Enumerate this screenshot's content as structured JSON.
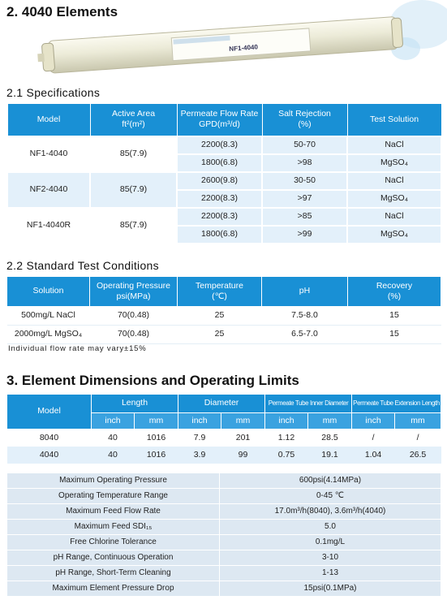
{
  "heading": "2. 4040 Elements",
  "element_label": "NF1-4040",
  "specifications": {
    "title": "2.1 Specifications",
    "header": [
      "Model",
      "Active Area\nft²(m²)",
      "Permeate Flow Rate\nGPD(m³/d)",
      "Salt Rejection\n(%)",
      "Test Solution"
    ],
    "groups": [
      {
        "model": "NF1-4040",
        "area": "85(7.9)",
        "rows": [
          [
            "2200(8.3)",
            "50-70",
            "NaCl"
          ],
          [
            "1800(6.8)",
            ">98",
            "MgSO₄"
          ]
        ]
      },
      {
        "model": "NF2-4040",
        "area": "85(7.9)",
        "rows": [
          [
            "2600(9.8)",
            "30-50",
            "NaCl"
          ],
          [
            "2200(8.3)",
            ">97",
            "MgSO₄"
          ]
        ]
      },
      {
        "model": "NF1-4040R",
        "area": "85(7.9)",
        "rows": [
          [
            "2200(8.3)",
            ">85",
            "NaCl"
          ],
          [
            "1800(6.8)",
            ">99",
            "MgSO₄"
          ]
        ]
      }
    ]
  },
  "test_conditions": {
    "title": "2.2 Standard Test Conditions",
    "header": [
      "Solution",
      "Operating Pressure\npsi(MPa)",
      "Temperature\n(℃)",
      "pH",
      "Recovery\n(%)"
    ],
    "rows": [
      [
        "500mg/L NaCl",
        "70(0.48)",
        "25",
        "7.5-8.0",
        "15"
      ],
      [
        "2000mg/L MgSO₄",
        "70(0.48)",
        "25",
        "6.5-7.0",
        "15"
      ]
    ],
    "note": "Individual flow rate may vary±15%"
  },
  "dimensions": {
    "title": "3. Element Dimensions and Operating Limits",
    "header": [
      "Model",
      "Length",
      "Diameter",
      "Permeate Tube Inner Diameter",
      "Permeate Tube Extension Length"
    ],
    "subheader": [
      "inch",
      "mm",
      "inch",
      "mm",
      "inch",
      "mm",
      "inch",
      "mm"
    ],
    "rows": [
      [
        "8040",
        "40",
        "1016",
        "7.9",
        "201",
        "1.12",
        "28.5",
        "/",
        "/"
      ],
      [
        "4040",
        "40",
        "1016",
        "3.9",
        "99",
        "0.75",
        "19.1",
        "1.04",
        "26.5"
      ]
    ]
  },
  "limits": {
    "rows": [
      [
        "Maximum Operating Pressure",
        "600psi(4.14MPa)"
      ],
      [
        "Operating Temperature Range",
        "0-45 ℃"
      ],
      [
        "Maximum Feed Flow Rate",
        "17.0m³/h(8040), 3.6m³/h(4040)"
      ],
      [
        "Maximum Feed SDI₁₅",
        "5.0"
      ],
      [
        "Free Chlorine Tolerance",
        "0.1mg/L"
      ],
      [
        "pH Range, Continuous Operation",
        "3-10"
      ],
      [
        "pH Range, Short-Term Cleaning",
        "1-13"
      ],
      [
        "Maximum Element Pressure Drop",
        "15psi(0.1MPa)"
      ]
    ]
  }
}
